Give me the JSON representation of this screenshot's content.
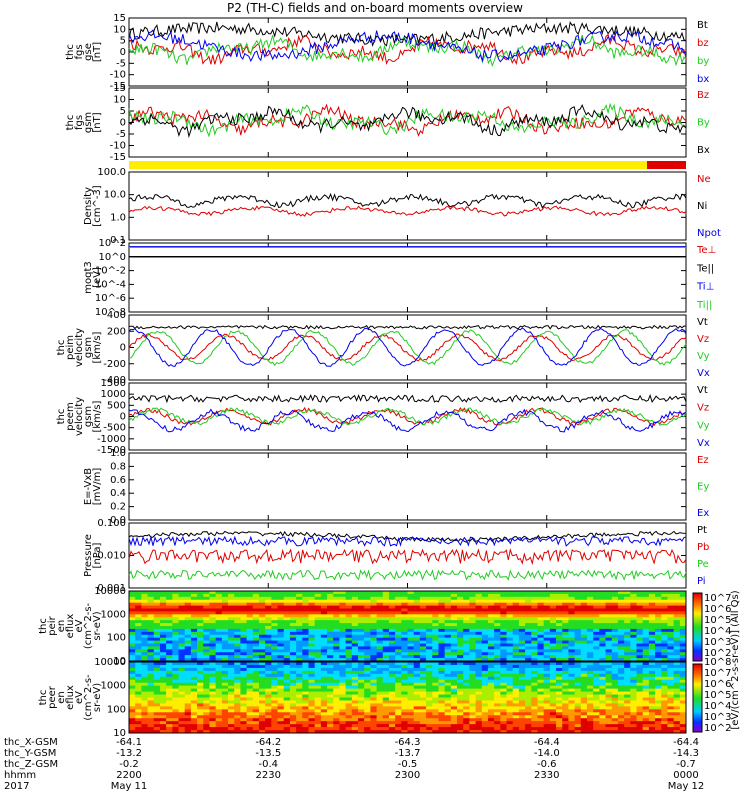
{
  "title": "P2 (TH-C) fields and on-board moments overview",
  "orbit_rows": [
    {
      "label": "thc_X-GSM",
      "values": [
        "-64.1",
        "-64.2",
        "-64.3",
        "-64.4",
        "-64.4"
      ]
    },
    {
      "label": "thc_Y-GSM",
      "values": [
        "-13.2",
        "-13.5",
        "-13.7",
        "-14.0",
        "-14.3"
      ]
    },
    {
      "label": "thc_Z-GSM",
      "values": [
        "-0.2",
        "-0.4",
        "-0.5",
        "-0.6",
        "-0.7"
      ]
    },
    {
      "label": "hhmm",
      "values": [
        "2200",
        "2230",
        "2300",
        "2330",
        "0000"
      ]
    },
    {
      "label": "2017",
      "values": [
        "May 11",
        "",
        "",
        "",
        "May 12"
      ]
    }
  ],
  "colorbar": {
    "ticks": [
      "10^7",
      "10^6",
      "10^5",
      "10^4",
      "10^3",
      "10^2",
      "10^8",
      "10^7",
      "10^6",
      "10^5",
      "10^4",
      "10^3",
      "10^2"
    ],
    "label": "[eV/(cm^2-s-sr-eV)] (All Qs)"
  },
  "chart_data": [
    {
      "type": "line",
      "name": "fgs",
      "ylabel": [
        "thc",
        "fgs",
        "gse",
        "[nT]"
      ],
      "yticks": [
        "15",
        "10",
        "5",
        "0",
        "-5",
        "-10",
        "-15"
      ],
      "ylim": [
        -18,
        16
      ],
      "legend": [
        {
          "name": "Bt",
          "color": "#000000"
        },
        {
          "name": "bz",
          "color": "#e00000"
        },
        {
          "name": "by",
          "color": "#22cc22"
        },
        {
          "name": "bx",
          "color": "#0000ee"
        }
      ]
    },
    {
      "type": "line",
      "name": "fgs_gsm",
      "ylabel": [
        "thc",
        "fgs",
        "gsm",
        "[nT]"
      ],
      "yticks": [
        "15",
        "10",
        "5",
        "0",
        "-5",
        "-10",
        "-15"
      ],
      "ylim": [
        -18,
        16
      ],
      "legend": [
        {
          "name": "Bz",
          "color": "#e00000"
        },
        {
          "name": "By",
          "color": "#22cc22"
        },
        {
          "name": "Bx",
          "color": "#000000"
        }
      ]
    },
    {
      "type": "bar",
      "name": "mode_bar",
      "segments": [
        {
          "start": "2200",
          "end": "2350",
          "color": "#ffee00"
        },
        {
          "start": "2350",
          "end": "0000",
          "color": "#e00000"
        }
      ]
    },
    {
      "type": "line",
      "name": "density",
      "ylabel": [
        "Density",
        "[cm^-3]"
      ],
      "yticks": [
        "100.0",
        "10.0",
        "1.0",
        "0.1"
      ],
      "ylim": [
        0.1,
        100
      ],
      "scale": "log",
      "legend": [
        {
          "name": "Ne",
          "color": "#e00000"
        },
        {
          "name": "Ni",
          "color": "#000000"
        },
        {
          "name": "Npot",
          "color": "#0000ee"
        }
      ]
    },
    {
      "type": "line",
      "name": "temperature",
      "ylabel": [
        "moqt3",
        "[eV]"
      ],
      "yticks": [
        "10^2",
        "10^0",
        "10^-2",
        "10^-4",
        "10^-6",
        "10^-8"
      ],
      "ylim": [
        -8,
        2
      ],
      "scale": "log",
      "legend": [
        {
          "name": "Te⊥",
          "color": "#e00000"
        },
        {
          "name": "Te||",
          "color": "#000000"
        },
        {
          "name": "Ti⊥",
          "color": "#0000ee"
        },
        {
          "name": "Ti||",
          "color": "#22cc22"
        }
      ]
    },
    {
      "type": "line",
      "name": "peim_velocity",
      "ylabel": [
        "thc",
        "peim",
        "velocity",
        "gsm",
        "[km/s]"
      ],
      "yticks": [
        "400",
        "200",
        "0",
        "-200",
        "-400"
      ],
      "ylim": [
        -400,
        400
      ],
      "legend": [
        {
          "name": "Vt",
          "color": "#000000"
        },
        {
          "name": "Vz",
          "color": "#e00000"
        },
        {
          "name": "Vy",
          "color": "#22cc22"
        },
        {
          "name": "Vx",
          "color": "#0000ee"
        }
      ]
    },
    {
      "type": "line",
      "name": "peem_velocity",
      "ylabel": [
        "thc",
        "peem",
        "velocity",
        "gsm",
        "[km/s]"
      ],
      "yticks": [
        "1500",
        "1000",
        "500",
        "0",
        "-500",
        "-1000",
        "-1500"
      ],
      "ylim": [
        -1500,
        1500
      ],
      "legend": [
        {
          "name": "Vt",
          "color": "#000000"
        },
        {
          "name": "Vz",
          "color": "#e00000"
        },
        {
          "name": "Vy",
          "color": "#22cc22"
        },
        {
          "name": "Vx",
          "color": "#0000ee"
        }
      ]
    },
    {
      "type": "line",
      "name": "efield",
      "ylabel": [
        "E=-VxB",
        "[mV/m]"
      ],
      "yticks": [
        "1.0",
        "0.8",
        "0.6",
        "0.4",
        "0.2",
        "0.0"
      ],
      "ylim": [
        0,
        1
      ],
      "legend": [
        {
          "name": "Ez",
          "color": "#e00000"
        },
        {
          "name": "Ey",
          "color": "#22cc22"
        },
        {
          "name": "Ex",
          "color": "#0000ee"
        }
      ]
    },
    {
      "type": "line",
      "name": "pressure",
      "ylabel": [
        "Pressure",
        "[nPa]"
      ],
      "yticks": [
        "0.100",
        "0.010",
        "0.001"
      ],
      "ylim": [
        0.0005,
        0.2
      ],
      "scale": "log",
      "legend": [
        {
          "name": "Pt",
          "color": "#000000"
        },
        {
          "name": "Pb",
          "color": "#e00000"
        },
        {
          "name": "Pe",
          "color": "#22cc22"
        },
        {
          "name": "Pi",
          "color": "#0000ee"
        }
      ]
    },
    {
      "type": "heatmap",
      "name": "peir_spec",
      "ylabel": [
        "thc",
        "peir",
        "en",
        "eflux",
        "eV",
        "(cm^2-s-",
        "sr-eV)"
      ],
      "yticks": [
        "10000",
        "1000",
        "100",
        "10"
      ],
      "ylim": [
        5,
        20000
      ],
      "scale": "log"
    },
    {
      "type": "heatmap",
      "name": "peer_spec",
      "ylabel": [
        "thc",
        "peer",
        "en",
        "eflux",
        "eV",
        "(cm^2-s-",
        "sr-eV)"
      ],
      "yticks": [
        "10000",
        "1000",
        "100",
        "10"
      ],
      "ylim": [
        5,
        20000
      ],
      "scale": "log"
    }
  ]
}
